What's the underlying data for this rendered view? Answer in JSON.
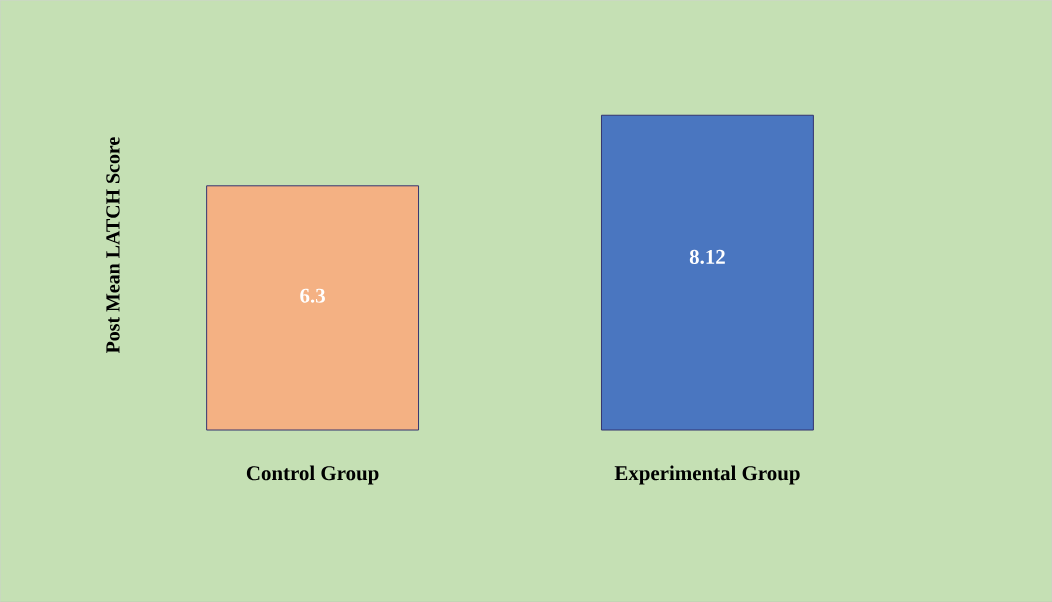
{
  "chart_data": {
    "type": "bar",
    "ylabel": "Post Mean LATCH Score",
    "categories": [
      "Control Group",
      "Experimental Group"
    ],
    "values": [
      6.3,
      8.12
    ],
    "colors": [
      "#f4b183",
      "#4a76c0"
    ],
    "data_labels": true
  }
}
